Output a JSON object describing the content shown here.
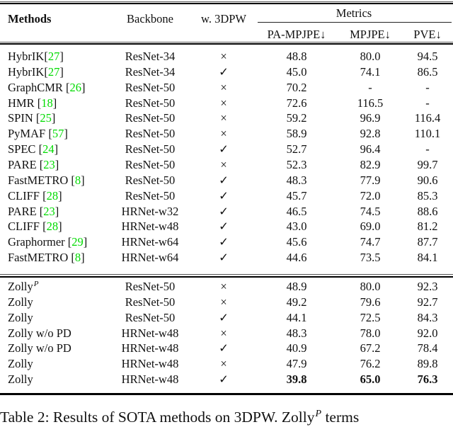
{
  "colors": {
    "citation_green": "#00DB00",
    "text": "#111111",
    "background": "#ffffff"
  },
  "header": {
    "methods": "Methods",
    "backbone": "Backbone",
    "w3dpw": "w. 3DPW",
    "metrics": "Metrics",
    "pa_mpjpe": "PA-MPJPE↓",
    "mpjpe": "MPJPE↓",
    "pve": "PVE↓"
  },
  "symbols": {
    "yes": "✓",
    "no": "×"
  },
  "groups": [
    {
      "rows": [
        {
          "method": "HybrIK",
          "cite": "27",
          "cite_space": false,
          "backbone": "ResNet-34",
          "w3dpw": "no",
          "pa": "48.8",
          "mpjpe": "80.0",
          "pve": "94.5"
        },
        {
          "method": "HybrIK",
          "cite": "27",
          "cite_space": false,
          "backbone": "ResNet-34",
          "w3dpw": "yes",
          "pa": "45.0",
          "mpjpe": "74.1",
          "pve": "86.5"
        },
        {
          "method": "GraphCMR",
          "cite": "26",
          "cite_space": true,
          "backbone": "ResNet-50",
          "w3dpw": "no",
          "pa": "70.2",
          "mpjpe": "-",
          "pve": "-"
        },
        {
          "method": "HMR",
          "cite": "18",
          "cite_space": true,
          "backbone": "ResNet-50",
          "w3dpw": "no",
          "pa": "72.6",
          "mpjpe": "116.5",
          "pve": "-"
        },
        {
          "method": "SPIN",
          "cite": "25",
          "cite_space": true,
          "backbone": "ResNet-50",
          "w3dpw": "no",
          "pa": "59.2",
          "mpjpe": "96.9",
          "pve": "116.4"
        },
        {
          "method": "PyMAF",
          "cite": "57",
          "cite_space": true,
          "backbone": "ResNet-50",
          "w3dpw": "no",
          "pa": "58.9",
          "mpjpe": "92.8",
          "pve": "110.1"
        },
        {
          "method": "SPEC",
          "cite": "24",
          "cite_space": true,
          "backbone": "ResNet-50",
          "w3dpw": "yes",
          "pa": "52.7",
          "mpjpe": "96.4",
          "pve": "-"
        },
        {
          "method": "PARE",
          "cite": "23",
          "cite_space": true,
          "backbone": "ResNet-50",
          "w3dpw": "no",
          "pa": "52.3",
          "mpjpe": "82.9",
          "pve": "99.7"
        },
        {
          "method": "FastMETRO",
          "cite": "8",
          "cite_space": true,
          "backbone": "ResNet-50",
          "w3dpw": "yes",
          "pa": "48.3",
          "mpjpe": "77.9",
          "pve": "90.6"
        },
        {
          "method": "CLIFF",
          "cite": "28",
          "cite_space": true,
          "backbone": "ResNet-50",
          "w3dpw": "yes",
          "pa": "45.7",
          "mpjpe": "72.0",
          "pve": "85.3"
        },
        {
          "method": "PARE",
          "cite": "23",
          "cite_space": true,
          "backbone": "HRNet-w32",
          "w3dpw": "yes",
          "pa": "46.5",
          "mpjpe": "74.5",
          "pve": "88.6"
        },
        {
          "method": "CLIFF",
          "cite": "28",
          "cite_space": true,
          "backbone": "HRNet-w48",
          "w3dpw": "yes",
          "pa": "43.0",
          "mpjpe": "69.0",
          "pve": "81.2"
        },
        {
          "method": "Graphormer",
          "cite": "29",
          "cite_space": true,
          "backbone": "HRNet-w64",
          "w3dpw": "yes",
          "pa": "45.6",
          "mpjpe": "74.7",
          "pve": "87.7"
        },
        {
          "method": "FastMETRO",
          "cite": "8",
          "cite_space": true,
          "backbone": "HRNet-w64",
          "w3dpw": "yes",
          "pa": "44.6",
          "mpjpe": "73.5",
          "pve": "84.1"
        }
      ]
    },
    {
      "rows": [
        {
          "method": "Zolly",
          "sup": "P",
          "backbone": "ResNet-50",
          "w3dpw": "no",
          "pa": "48.9",
          "mpjpe": "80.0",
          "pve": "92.3"
        },
        {
          "method": "Zolly",
          "backbone": "ResNet-50",
          "w3dpw": "no",
          "pa": "49.2",
          "mpjpe": "79.6",
          "pve": "92.7"
        },
        {
          "method": "Zolly",
          "backbone": "ResNet-50",
          "w3dpw": "yes",
          "pa": "44.1",
          "mpjpe": "72.5",
          "pve": "84.3"
        },
        {
          "method": "Zolly w/o PD",
          "backbone": "HRNet-w48",
          "w3dpw": "no",
          "pa": "48.3",
          "mpjpe": "78.0",
          "pve": "92.0"
        },
        {
          "method": "Zolly w/o PD",
          "backbone": "HRNet-w48",
          "w3dpw": "yes",
          "pa": "40.9",
          "mpjpe": "67.2",
          "pve": "78.4"
        },
        {
          "method": "Zolly",
          "backbone": "HRNet-w48",
          "w3dpw": "no",
          "pa": "47.9",
          "mpjpe": "76.2",
          "pve": "89.8"
        },
        {
          "method": "Zolly",
          "backbone": "HRNet-w48",
          "w3dpw": "yes",
          "pa": "39.8",
          "mpjpe": "65.0",
          "pve": "76.3",
          "bold": true
        }
      ]
    }
  ],
  "caption": {
    "pre": "Table 2: Results of SOTA methods on 3DPW. Zolly",
    "sup": "P",
    "post": " terms"
  }
}
